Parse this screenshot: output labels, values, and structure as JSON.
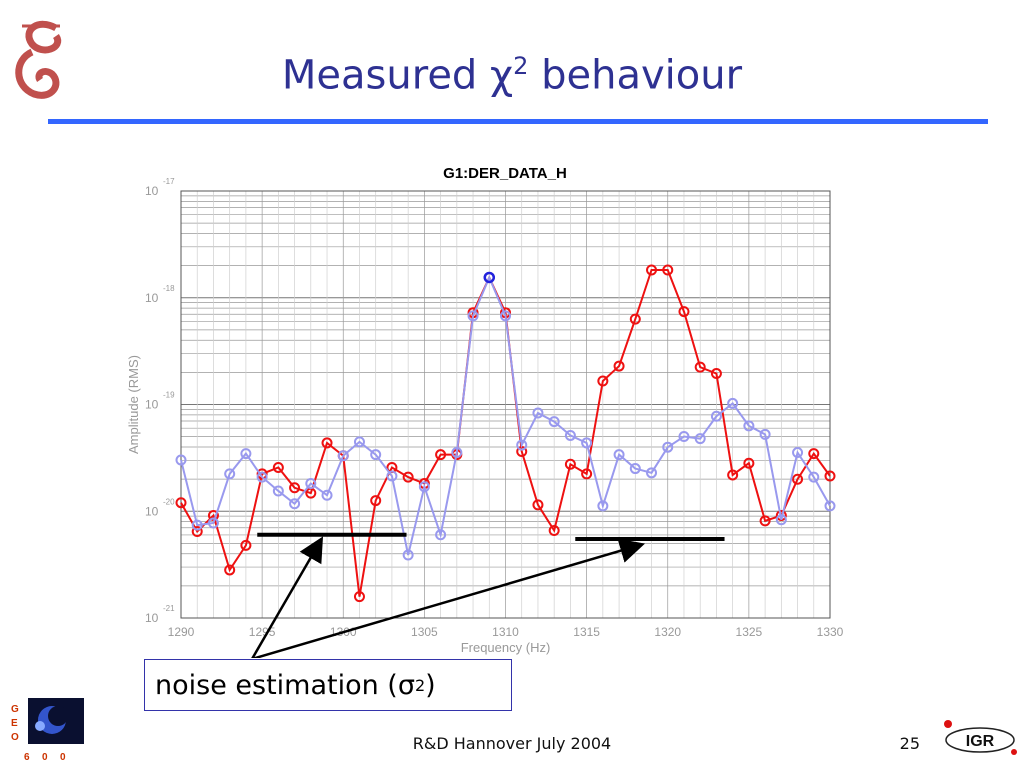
{
  "slide": {
    "title_main": "Measured χ",
    "title_sup": "2",
    "title_tail": " behaviour",
    "footer_center": "R&D Hannover July 2004",
    "page_number": "25",
    "noise_label_main": "noise estimation (σ",
    "noise_label_sup": "2",
    "noise_label_tail": ")",
    "logo_left_letters": [
      "G",
      "E",
      "O",
      "6",
      "0",
      "0"
    ],
    "logo_right_text": "IGR",
    "accent_color": "#3366ff",
    "title_color": "#2e3192"
  },
  "chart_data": {
    "type": "line",
    "title": "G1:DER_DATA_H",
    "xlabel": "Frequency (Hz)",
    "ylabel": "Amplitude (RMS)",
    "xlim": [
      1290,
      1330
    ],
    "ylim_log10": [
      -21,
      -17
    ],
    "y_scale": "log",
    "x_ticks": [
      1290,
      1295,
      1300,
      1305,
      1310,
      1315,
      1320,
      1325,
      1330
    ],
    "y_ticks": [
      {
        "base": "10",
        "exp": "-17"
      },
      {
        "base": "10",
        "exp": "-18"
      },
      {
        "base": "10",
        "exp": "-19"
      },
      {
        "base": "10",
        "exp": "-20"
      },
      {
        "base": "10",
        "exp": "-21"
      }
    ],
    "grid": true,
    "series": [
      {
        "color": "#ee1111",
        "points": [
          [
            1290,
            -19.92
          ],
          [
            1291,
            -20.19
          ],
          [
            1292,
            -20.04
          ],
          [
            1293,
            -20.55
          ],
          [
            1294,
            -20.32
          ],
          [
            1295,
            -19.65
          ],
          [
            1296,
            -19.59
          ],
          [
            1297,
            -19.78
          ],
          [
            1298,
            -19.83
          ],
          [
            1299,
            -19.36
          ],
          [
            1300,
            -19.48
          ],
          [
            1301,
            -20.8
          ],
          [
            1302,
            -19.9
          ],
          [
            1303,
            -19.59
          ],
          [
            1304,
            -19.68
          ],
          [
            1305,
            -19.74
          ],
          [
            1306,
            -19.47
          ],
          [
            1307,
            -19.47
          ],
          [
            1308,
            -18.14
          ],
          [
            1309,
            -17.81
          ],
          [
            1310,
            -18.14
          ],
          [
            1311,
            -19.44
          ],
          [
            1312,
            -19.94
          ],
          [
            1313,
            -20.18
          ],
          [
            1314,
            -19.56
          ],
          [
            1315,
            -19.65
          ],
          [
            1316,
            -18.78
          ],
          [
            1317,
            -18.64
          ],
          [
            1318,
            -18.2
          ],
          [
            1319,
            -17.74
          ],
          [
            1320,
            -17.74
          ],
          [
            1321,
            -18.13
          ],
          [
            1322,
            -18.65
          ],
          [
            1323,
            -18.71
          ],
          [
            1324,
            -19.66
          ],
          [
            1325,
            -19.55
          ],
          [
            1326,
            -20.09
          ],
          [
            1327,
            -20.04
          ],
          [
            1328,
            -19.7
          ],
          [
            1329,
            -19.46
          ],
          [
            1330,
            -19.67
          ]
        ]
      },
      {
        "color": "#9999ee",
        "points": [
          [
            1290,
            -19.52
          ],
          [
            1291,
            -20.13
          ],
          [
            1292,
            -20.11
          ],
          [
            1293,
            -19.65
          ],
          [
            1294,
            -19.46
          ],
          [
            1295,
            -19.68
          ],
          [
            1296,
            -19.81
          ],
          [
            1297,
            -19.93
          ],
          [
            1298,
            -19.74
          ],
          [
            1299,
            -19.85
          ],
          [
            1300,
            -19.48
          ],
          [
            1301,
            -19.35
          ],
          [
            1302,
            -19.47
          ],
          [
            1303,
            -19.67
          ],
          [
            1304,
            -20.41
          ],
          [
            1305,
            -19.77
          ],
          [
            1306,
            -20.22
          ],
          [
            1307,
            -19.45
          ],
          [
            1308,
            -18.17
          ],
          [
            1309,
            -17.81
          ],
          [
            1310,
            -18.17
          ],
          [
            1311,
            -19.38
          ],
          [
            1312,
            -19.08
          ],
          [
            1313,
            -19.16
          ],
          [
            1314,
            -19.29
          ],
          [
            1315,
            -19.36
          ],
          [
            1316,
            -19.95
          ],
          [
            1317,
            -19.47
          ],
          [
            1318,
            -19.6
          ],
          [
            1319,
            -19.64
          ],
          [
            1320,
            -19.4
          ],
          [
            1321,
            -19.3
          ],
          [
            1322,
            -19.32
          ],
          [
            1323,
            -19.11
          ],
          [
            1324,
            -18.99
          ],
          [
            1325,
            -19.2
          ],
          [
            1326,
            -19.28
          ],
          [
            1327,
            -20.08
          ],
          [
            1328,
            -19.45
          ],
          [
            1329,
            -19.68
          ],
          [
            1330,
            -19.95
          ]
        ]
      }
    ],
    "highlight_point": {
      "x": 1309,
      "y_log10": -17.81,
      "color": "#2222dd"
    },
    "noise_bands": [
      {
        "x_start": 1294.7,
        "x_end": 1303.9,
        "y_log10": -20.22
      },
      {
        "x_start": 1314.3,
        "x_end": 1323.5,
        "y_log10": -20.26
      }
    ],
    "annotation": "noise estimation (σ²)"
  }
}
